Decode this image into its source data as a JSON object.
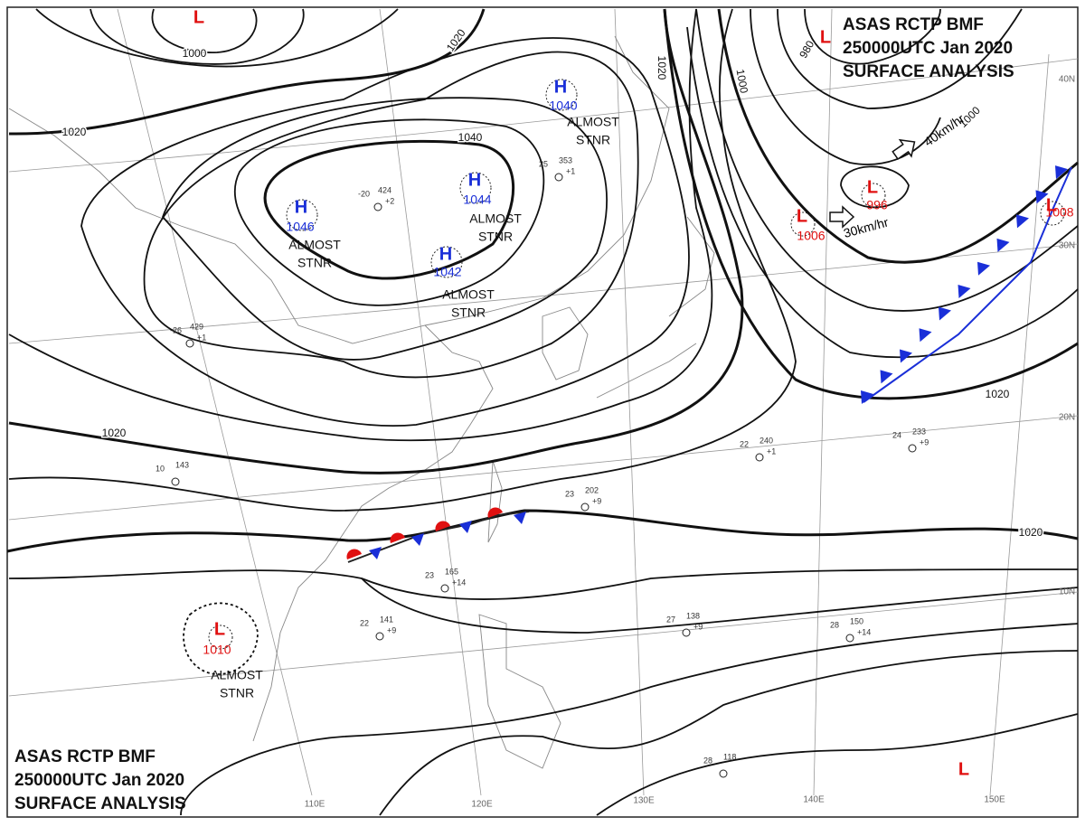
{
  "header_top": {
    "lines": [
      "ASAS    RCTP    BMF",
      "250000UTC    Jan    2020",
      "SURFACE  ANALYSIS"
    ]
  },
  "header_bottom": {
    "lines": [
      "ASAS     RCTP     BMF",
      "250000UTC    Jan    2020",
      "SURFACE  ANALYSIS"
    ]
  },
  "centers": [
    {
      "kind": "L"
    },
    {
      "kind": "H",
      "pressure": 1046,
      "motion": [
        "ALMOST",
        "STNR"
      ]
    },
    {
      "kind": "H",
      "pressure": 1044,
      "motion": [
        "ALMOST",
        "STNR"
      ]
    },
    {
      "kind": "H",
      "pressure": 1042,
      "motion": [
        "ALMOST",
        "STNR"
      ]
    },
    {
      "kind": "H",
      "pressure": 1040,
      "motion": [
        "ALMOST",
        "STNR"
      ]
    },
    {
      "kind": "L",
      "pressure": 996
    },
    {
      "kind": "L",
      "pressure": 1006
    },
    {
      "kind": "L",
      "pressure": 1008
    },
    {
      "kind": "L",
      "pressure": 1010,
      "motion": [
        "ALMOST",
        "STNR"
      ]
    },
    {
      "kind": "L"
    },
    {
      "kind": "L"
    }
  ],
  "isobar_labels": [
    1000,
    1020,
    1020,
    1040,
    1020,
    1000,
    980,
    1000,
    1020,
    1020,
    1020
  ],
  "motion_labels": [
    "40km/hr",
    "30km/hr"
  ],
  "grid_labels": [
    "110E",
    "120E",
    "130E",
    "140E",
    "150E",
    "40N",
    "30N",
    "20N",
    "10N"
  ],
  "stations": [
    {
      "temp": "22",
      "pressure": "240",
      "tendency": "+1"
    },
    {
      "temp": "24",
      "pressure": "233",
      "tendency": "+9"
    },
    {
      "temp": "25",
      "pressure": "353",
      "tendency": "+1"
    },
    {
      "temp": "-20",
      "pressure": "424",
      "tendency": "+2"
    },
    {
      "temp": "23",
      "pressure": "202",
      "tendency": "+9"
    },
    {
      "temp": "22",
      "pressure": "141",
      "tendency": "+9"
    },
    {
      "temp": "27",
      "pressure": "138",
      "tendency": "+9"
    },
    {
      "temp": "28",
      "pressure": "150",
      "tendency": "+14"
    },
    {
      "temp": "23",
      "pressure": "165",
      "tendency": "+14"
    },
    {
      "temp": "10",
      "pressure": "143"
    },
    {
      "temp": "-26",
      "pressure": "429",
      "tendency": "+1"
    },
    {
      "temp": "28",
      "pressure": "118"
    }
  ]
}
